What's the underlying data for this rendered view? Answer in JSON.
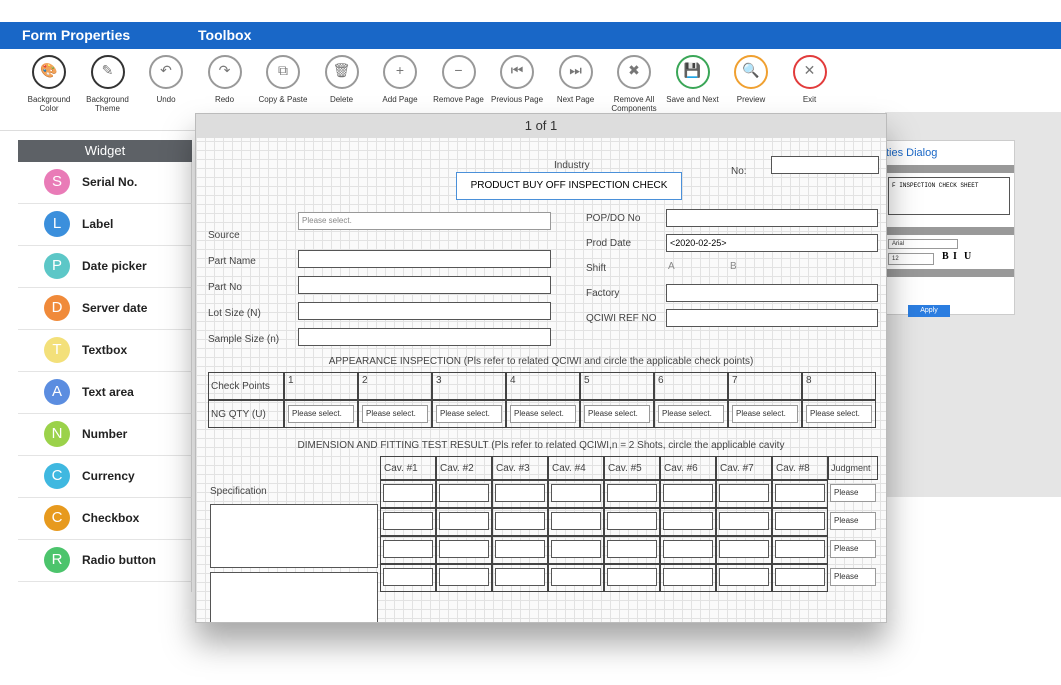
{
  "header": {
    "tabs": [
      "Form Properties",
      "Toolbox"
    ]
  },
  "toolbar": [
    {
      "label": "Background Color",
      "icon": "🎨"
    },
    {
      "label": "Background Theme",
      "icon": "✎"
    },
    {
      "label": "Undo",
      "icon": "↶"
    },
    {
      "label": "Redo",
      "icon": "↷"
    },
    {
      "label": "Copy & Paste",
      "icon": "⧉"
    },
    {
      "label": "Delete",
      "icon": "🗑"
    },
    {
      "label": "Add Page",
      "icon": "+"
    },
    {
      "label": "Remove Page",
      "icon": "−"
    },
    {
      "label": "Previous Page",
      "icon": "⏮"
    },
    {
      "label": "Next Page",
      "icon": "⏭"
    },
    {
      "label": "Remove All Components",
      "icon": "✖"
    },
    {
      "label": "Save and Next",
      "icon": "💾"
    },
    {
      "label": "Preview",
      "icon": "🔍"
    },
    {
      "label": "Exit",
      "icon": "✕"
    }
  ],
  "widget_panel": {
    "title": "Widget",
    "items": [
      {
        "letter": "S",
        "label": "Serial No.",
        "color": "#e97bb7"
      },
      {
        "letter": "L",
        "label": "Label",
        "color": "#3b8fdc"
      },
      {
        "letter": "P",
        "label": "Date picker",
        "color": "#5cc7c7"
      },
      {
        "letter": "D",
        "label": "Server date",
        "color": "#f08a3a"
      },
      {
        "letter": "T",
        "label": "Textbox",
        "color": "#f3e07a"
      },
      {
        "letter": "A",
        "label": "Text area",
        "color": "#5b8de0"
      },
      {
        "letter": "N",
        "label": "Number",
        "color": "#9bd24a"
      },
      {
        "letter": "C",
        "label": "Currency",
        "color": "#3fb8e0"
      },
      {
        "letter": "C",
        "label": "Checkbox",
        "color": "#e79a1e"
      },
      {
        "letter": "R",
        "label": "Radio button",
        "color": "#4cc46c"
      }
    ]
  },
  "form": {
    "page_indicator": "1 of 1",
    "industry": "Industry",
    "title": "PRODUCT BUY OFF INSPECTION CHECK",
    "no_label": "No:",
    "select_placeholder": "Please select.",
    "left_fields": [
      "Source",
      "Part Name",
      "Part No",
      "Lot Size (N)",
      "Sample Size (n)"
    ],
    "right_fields": [
      {
        "label": "POP/DO No",
        "value": ""
      },
      {
        "label": "Prod Date",
        "value": "<2020-02-25>"
      },
      {
        "label": "Shift",
        "value": ""
      },
      {
        "label": "Factory",
        "value": ""
      },
      {
        "label": "QCIWI REF NO",
        "value": ""
      }
    ],
    "shift_options": [
      "A",
      "B"
    ],
    "appearance": {
      "heading": "APPEARANCE INSPECTION (Pls refer to related QCIWI and circle the applicable check points)",
      "row_labels": [
        "Check Points",
        "NG QTY (U)"
      ],
      "columns": [
        "1",
        "2",
        "3",
        "4",
        "5",
        "6",
        "7",
        "8"
      ],
      "cell": "Please select."
    },
    "dimension": {
      "heading": "DIMENSION AND FITTING TEST RESULT (Pls refer to related QCIWI,n = 2 Shots, circle the applicable cavity",
      "spec_label": "Specification",
      "columns": [
        "Cav. #1",
        "Cav. #2",
        "Cav. #3",
        "Cav. #4",
        "Cav. #5",
        "Cav. #6",
        "Cav. #7",
        "Cav. #8"
      ],
      "judgment": "Judgment",
      "judgment_cells": [
        "Please",
        "Please",
        "Please",
        "Please"
      ]
    }
  },
  "properties_dialog": {
    "tab": "ties Dialog",
    "text": "F INSPECTION CHECK SHEET",
    "font": "Arial",
    "size": "12",
    "styles": [
      "B",
      "I",
      "U"
    ],
    "apply": "Apply"
  }
}
